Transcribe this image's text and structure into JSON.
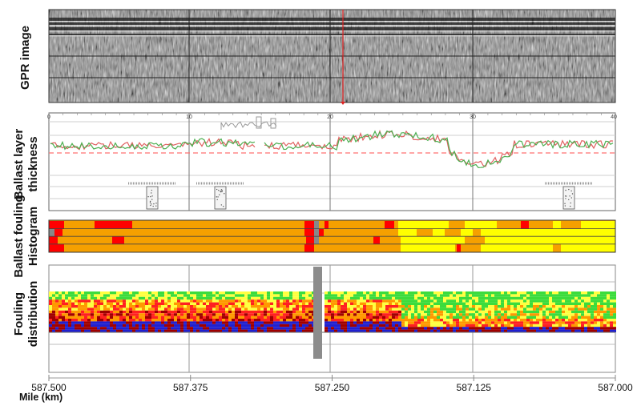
{
  "chart_data": {
    "type": "multi-panel",
    "panels": [
      {
        "label": "GPR image",
        "type": "heatmap"
      },
      {
        "label": "Ballast layer thickness",
        "type": "line",
        "top_ticks": [
          "0",
          "10",
          "20",
          "30",
          "40"
        ],
        "threshold_color": "#ff7070",
        "series_colors": [
          "#e06060",
          "#4caf50"
        ]
      },
      {
        "label": "Ballast fouling Histogram",
        "type": "heatmap",
        "colors": {
          "clean": "#ffff00",
          "light": "#f5a000",
          "moderate": "#ff0000",
          "unknown": "#888888"
        }
      },
      {
        "label": "Fouling distribution",
        "type": "heatmap",
        "colors": [
          "#3cdc3c",
          "#ffff40",
          "#ff9900",
          "#ff2020",
          "#a00000",
          "#2020d0"
        ]
      }
    ],
    "x_axis": {
      "title": "Mile (km)",
      "ticks": [
        "587.500",
        "587.375",
        "587.250",
        "587.125",
        "587.000"
      ],
      "range": [
        587.5,
        587.0
      ]
    }
  }
}
